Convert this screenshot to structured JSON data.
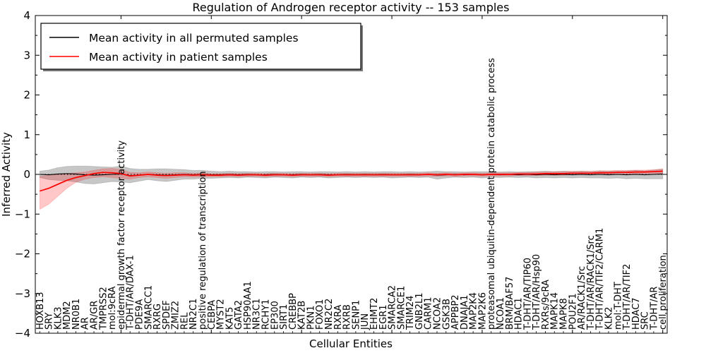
{
  "title": "Regulation of Androgen receptor activity -- 153 samples",
  "legend": {
    "items": [
      {
        "label": "Mean activity in all permuted samples",
        "color": "#000000"
      },
      {
        "label": "Mean activity in patient samples",
        "color": "#ff0000"
      }
    ]
  },
  "axes": {
    "xlabel": "Cellular Entities",
    "ylabel": "Inferred Activity",
    "yticks": [
      4,
      3,
      2,
      1,
      0,
      -1,
      -2,
      -3,
      -4
    ],
    "y_minor_step": 0.5,
    "ylim": [
      -4,
      4
    ]
  },
  "chart_data": {
    "type": "line",
    "title": "Regulation of Androgen receptor activity -- 153 samples",
    "xlabel": "Cellular Entities",
    "ylabel": "Inferred Activity",
    "ylim": [
      -4,
      4
    ],
    "grid": false,
    "legend_position": "upper left",
    "zero_line_style": "dotted",
    "categories": [
      "HOXB13",
      "SRY",
      "KLK3",
      "MDM2",
      "NR0B1",
      "AR",
      "AR/GR",
      "TMPRSS2",
      "mol:9cRA",
      "epidermal growth factor receptor activity",
      "T-DHT/AR/DAX-1",
      "PDE9A",
      "SMARCC1",
      "RXRG",
      "SPDEF",
      "ZMIZ2",
      "REL",
      "NR2C1",
      "positive regulation of transcription",
      "CEBPA",
      "MYST2",
      "KAT5",
      "GATA2",
      "HSP90AA1",
      "NR3C1",
      "RCHY1",
      "EP300",
      "SIRT1",
      "CREBBP",
      "KAT2B",
      "PKN1",
      "FOXO1",
      "NR2C2",
      "RXRA",
      "RXRB",
      "SENP1",
      "JUN",
      "EHMT2",
      "EGR1",
      "SMARCA2",
      "SMARCE1",
      "TRIM24",
      "GNB2L1",
      "CARM1",
      "NCOA2",
      "GSK3B",
      "APPBP2",
      "DNAJA1",
      "MAP2K4",
      "MAP2K6",
      "proteasomal ubiquitin-dependent protein catabolic process",
      "NCOA1",
      "BRM/BAF57",
      "HDAC1",
      "T-DHT/AR/TIP60",
      "T-DHT/AR/Hsp90",
      "RXRs/9cRA",
      "MAPK14",
      "MAPK8",
      "POU2F1",
      "AR/RACK1/Src",
      "T-DHT/AR/RACK1/Src",
      "T-DHT/AR/TIF2/CARM1",
      "KLK2",
      "mol:T-DHT",
      "T-DHT/AR/TIF2",
      "HDAC7",
      "SRC",
      "T-DHT/AR",
      "cell proliferation"
    ],
    "series": [
      {
        "name": "Mean activity in all permuted samples",
        "color": "#000000",
        "values": [
          0.0,
          -0.01,
          0.01,
          0.02,
          0.01,
          -0.01,
          -0.02,
          -0.01,
          0.0,
          0.01,
          -0.03,
          -0.02,
          0.0,
          -0.01,
          -0.02,
          -0.01,
          0.0,
          -0.01,
          0.0,
          -0.01,
          -0.01,
          0.0,
          -0.01,
          0.0,
          -0.01,
          -0.01,
          0.0,
          -0.01,
          -0.01,
          0.0,
          -0.01,
          0.0,
          -0.01,
          -0.01,
          0.0,
          -0.01,
          0.0,
          -0.01,
          0.0,
          -0.01,
          -0.01,
          0.0,
          -0.01,
          0.0,
          -0.02,
          -0.01,
          0.0,
          -0.01,
          0.0,
          -0.01,
          0.0,
          -0.01,
          0.0,
          -0.01,
          0.0,
          -0.01,
          0.0,
          -0.01,
          0.0,
          -0.01,
          0.0,
          -0.01,
          0.0,
          -0.01,
          0.0,
          -0.01,
          0.0,
          -0.01,
          0.0,
          0.01
        ],
        "band_upper": [
          0.08,
          0.11,
          0.17,
          0.2,
          0.21,
          0.21,
          0.2,
          0.19,
          0.18,
          0.21,
          0.15,
          0.13,
          0.13,
          0.14,
          0.14,
          0.13,
          0.12,
          0.1,
          0.1,
          0.08,
          0.07,
          0.08,
          0.07,
          0.07,
          0.06,
          0.07,
          0.07,
          0.06,
          0.07,
          0.07,
          0.06,
          0.07,
          0.07,
          0.06,
          0.07,
          0.06,
          0.07,
          0.06,
          0.07,
          0.07,
          0.06,
          0.07,
          0.06,
          0.07,
          0.08,
          0.07,
          0.07,
          0.06,
          0.07,
          0.07,
          0.07,
          0.06,
          0.07,
          0.06,
          0.07,
          0.07,
          0.08,
          0.07,
          0.08,
          0.07,
          0.08,
          0.07,
          0.09,
          0.08,
          0.09,
          0.09,
          0.1,
          0.09,
          0.11,
          0.13
        ],
        "band_lower": [
          -0.08,
          -0.13,
          -0.15,
          -0.16,
          -0.19,
          -0.23,
          -0.24,
          -0.21,
          -0.18,
          -0.19,
          -0.21,
          -0.17,
          -0.13,
          -0.16,
          -0.18,
          -0.15,
          -0.12,
          -0.12,
          -0.1,
          -0.1,
          -0.09,
          -0.08,
          -0.09,
          -0.07,
          -0.08,
          -0.09,
          -0.07,
          -0.08,
          -0.09,
          -0.07,
          -0.08,
          -0.07,
          -0.09,
          -0.08,
          -0.07,
          -0.08,
          -0.07,
          -0.08,
          -0.07,
          -0.09,
          -0.08,
          -0.07,
          -0.08,
          -0.07,
          -0.12,
          -0.09,
          -0.07,
          -0.08,
          -0.07,
          -0.09,
          -0.07,
          -0.08,
          -0.07,
          -0.08,
          -0.07,
          -0.09,
          -0.08,
          -0.09,
          -0.08,
          -0.09,
          -0.08,
          -0.09,
          -0.09,
          -0.1,
          -0.09,
          -0.11,
          -0.1,
          -0.11,
          -0.11,
          -0.11
        ]
      },
      {
        "name": "Mean activity in patient samples",
        "color": "#ff0000",
        "values": [
          -0.42,
          -0.35,
          -0.25,
          -0.15,
          -0.08,
          -0.03,
          0.02,
          0.05,
          0.04,
          0.02,
          -0.04,
          -0.02,
          0.0,
          -0.02,
          -0.03,
          -0.02,
          -0.01,
          -0.02,
          -0.01,
          -0.02,
          -0.02,
          -0.01,
          -0.02,
          -0.01,
          -0.01,
          -0.02,
          -0.01,
          -0.01,
          -0.02,
          -0.01,
          -0.01,
          -0.01,
          -0.02,
          -0.01,
          -0.01,
          -0.01,
          -0.01,
          -0.01,
          -0.01,
          -0.01,
          -0.01,
          -0.01,
          -0.01,
          0.0,
          -0.01,
          0.0,
          -0.01,
          0.0,
          0.0,
          -0.01,
          0.0,
          0.0,
          0.0,
          0.01,
          0.01,
          0.01,
          0.02,
          0.02,
          0.02,
          0.03,
          0.03,
          0.03,
          0.04,
          0.04,
          0.05,
          0.05,
          0.06,
          0.06,
          0.07,
          0.08
        ],
        "band_upper": [
          -0.05,
          -0.02,
          0.0,
          0.02,
          0.04,
          0.06,
          0.1,
          0.14,
          0.15,
          0.13,
          0.05,
          0.04,
          0.06,
          0.04,
          0.03,
          0.04,
          0.04,
          0.03,
          0.04,
          0.02,
          0.02,
          0.03,
          0.02,
          0.03,
          0.03,
          0.02,
          0.03,
          0.03,
          0.02,
          0.03,
          0.03,
          0.03,
          0.02,
          0.03,
          0.03,
          0.03,
          0.03,
          0.03,
          0.03,
          0.03,
          0.03,
          0.03,
          0.03,
          0.04,
          0.03,
          0.04,
          0.03,
          0.04,
          0.04,
          0.03,
          0.04,
          0.04,
          0.04,
          0.05,
          0.05,
          0.06,
          0.06,
          0.07,
          0.07,
          0.08,
          0.08,
          0.08,
          0.09,
          0.09,
          0.1,
          0.1,
          0.11,
          0.11,
          0.12,
          0.14
        ],
        "band_lower": [
          -0.88,
          -0.75,
          -0.55,
          -0.35,
          -0.2,
          -0.12,
          -0.08,
          -0.06,
          -0.08,
          -0.1,
          -0.12,
          -0.08,
          -0.06,
          -0.08,
          -0.1,
          -0.08,
          -0.06,
          -0.07,
          -0.06,
          -0.06,
          -0.06,
          -0.05,
          -0.06,
          -0.05,
          -0.05,
          -0.06,
          -0.05,
          -0.05,
          -0.06,
          -0.05,
          -0.05,
          -0.05,
          -0.06,
          -0.05,
          -0.05,
          -0.05,
          -0.05,
          -0.05,
          -0.05,
          -0.05,
          -0.05,
          -0.05,
          -0.05,
          -0.04,
          -0.05,
          -0.04,
          -0.05,
          -0.04,
          -0.04,
          -0.05,
          -0.04,
          -0.04,
          -0.04,
          -0.03,
          -0.03,
          -0.03,
          -0.02,
          -0.02,
          -0.02,
          -0.01,
          -0.01,
          -0.01,
          0.0,
          0.0,
          0.0,
          0.01,
          0.01,
          0.02,
          0.02,
          0.02
        ]
      }
    ]
  }
}
